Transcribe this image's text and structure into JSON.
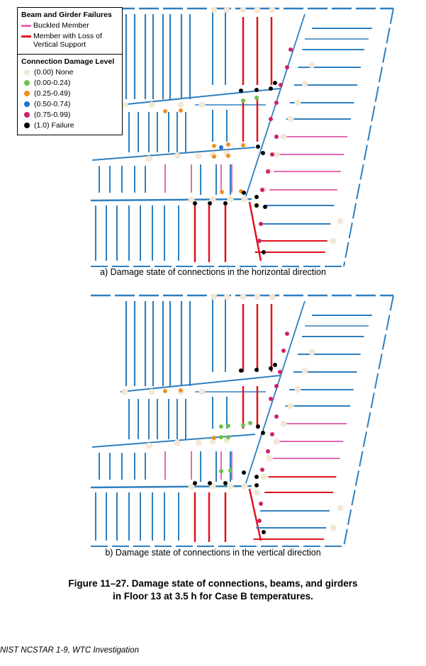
{
  "legend": {
    "failures_title": "Beam and Girder Failures",
    "buckled": "Buckled Member",
    "support_loss": "Member with Loss of Vertical Support",
    "damage_title": "Connection Damage Level",
    "levels": [
      {
        "label": "(0.00) None",
        "color": "#f3e8d6"
      },
      {
        "label": "(0.00-0.24)",
        "color": "#6cc24a"
      },
      {
        "label": "(0.25-0.49)",
        "color": "#f0901e"
      },
      {
        "label": "(0.50-0.74)",
        "color": "#1f6fd1"
      },
      {
        "label": "(0.75-0.99)",
        "color": "#d0206a"
      },
      {
        "label": "(1.0) Failure",
        "color": "#000000"
      }
    ]
  },
  "colors": {
    "member": "#2e7fbf",
    "buckled": "#e46ab4",
    "support_loss": "#e0141c",
    "none": "#f3e8d6"
  },
  "plans": {
    "a": {
      "caption": "a) Damage state of connections in the horizontal direction"
    },
    "b": {
      "caption": "b) Damage state of connections in the vertical direction"
    }
  },
  "figure_caption": {
    "line1": "Figure 11–27. Damage state of connections, beams, and girders",
    "line2": "in Floor 13 at 3.5 h for Case B temperatures."
  },
  "footer": "NIST NCSTAR 1-9, WTC Investigation"
}
